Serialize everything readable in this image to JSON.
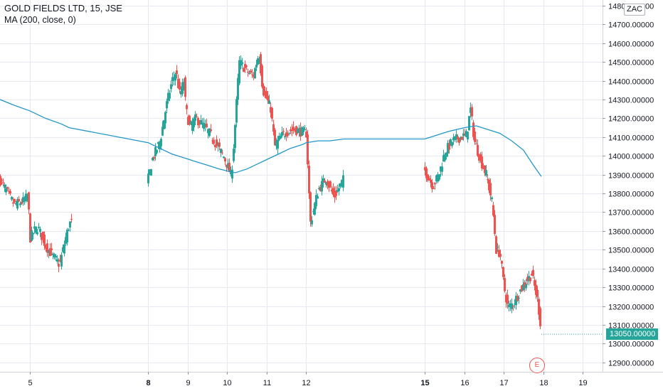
{
  "header": {
    "title": "GOLD FIELDS LTD, 15, JSE",
    "indicator": "MA (200, close, 0)"
  },
  "currency": "ZAC",
  "last_price_label": "13050.00000",
  "event_marker_label": "E",
  "colors": {
    "up": "#26a69a",
    "down": "#ef5350",
    "ma": "#2196c8",
    "grid": "#e6e9ef",
    "price_tag": "#26a69a"
  },
  "chart_data": {
    "type": "candlestick",
    "title": "",
    "xlabel": "",
    "ylabel": "",
    "ylim": [
      12850,
      14830
    ],
    "xlim": [
      4.25,
      19.5
    ],
    "grid": true,
    "y_ticks": [
      12900,
      13000,
      13100,
      13200,
      13300,
      13400,
      13500,
      13600,
      13700,
      13800,
      13900,
      14000,
      14100,
      14200,
      14300,
      14400,
      14500,
      14600,
      14700,
      14800
    ],
    "y_tick_labels": [
      "12900.00000",
      "13000.00000",
      "13100.00000",
      "13200.00000",
      "13300.00000",
      "13400.00000",
      "13500.00000",
      "13600.00000",
      "13700.00000",
      "13800.00000",
      "13900.00000",
      "14000.00000",
      "14100.00000",
      "14200.00000",
      "14300.00000",
      "14400.00000",
      "14500.00000",
      "14600.00000",
      "14700.00000",
      "14800.00000"
    ],
    "x_ticks": [
      {
        "value": 5,
        "label": "5",
        "bold": false
      },
      {
        "value": 8,
        "label": "8",
        "bold": true
      },
      {
        "value": 9,
        "label": "9",
        "bold": false
      },
      {
        "value": 10,
        "label": "10",
        "bold": false
      },
      {
        "value": 11,
        "label": "11",
        "bold": false
      },
      {
        "value": 12,
        "label": "12",
        "bold": false
      },
      {
        "value": 15,
        "label": "15",
        "bold": true
      },
      {
        "value": 16,
        "label": "16",
        "bold": false
      },
      {
        "value": 17,
        "label": "17",
        "bold": false
      },
      {
        "value": 18,
        "label": "18",
        "bold": false
      },
      {
        "value": 19,
        "label": "19",
        "bold": false
      }
    ],
    "last_price": 13050,
    "anchors": {
      "x": [
        4.25,
        4.6,
        4.85,
        4.95,
        5.0,
        5.1,
        5.2,
        5.4,
        5.6,
        5.75,
        5.9,
        6.0,
        8.0,
        8.1,
        8.3,
        8.45,
        8.6,
        8.7,
        8.8,
        8.9,
        8.95,
        9.05,
        9.2,
        9.4,
        9.55,
        9.75,
        9.9,
        10.0,
        10.1,
        10.15,
        10.3,
        10.5,
        10.65,
        10.8,
        10.9,
        11.1,
        11.2,
        11.35,
        11.5,
        11.7,
        11.85,
        12.0,
        12.1,
        12.3,
        12.5,
        12.7,
        12.95,
        15.0,
        15.2,
        15.35,
        15.5,
        15.7,
        15.9,
        16.05,
        16.15,
        16.25,
        16.4,
        16.55,
        16.7,
        16.8,
        16.9,
        17.0,
        17.1,
        17.25,
        17.4,
        17.55,
        17.7,
        17.85,
        17.95
      ],
      "y": [
        13870,
        13740,
        13760,
        13790,
        13560,
        13600,
        13620,
        13520,
        13460,
        13420,
        13560,
        13640,
        13880,
        13980,
        14080,
        14260,
        14400,
        14450,
        14320,
        14400,
        14250,
        14150,
        14200,
        14160,
        14120,
        14050,
        14000,
        13950,
        13890,
        14020,
        14500,
        14450,
        14420,
        14550,
        14350,
        14250,
        14050,
        14100,
        14130,
        14140,
        14130,
        14120,
        13640,
        13820,
        13880,
        13780,
        13880,
        13920,
        13840,
        13900,
        14020,
        14080,
        14100,
        14110,
        14250,
        14080,
        13980,
        13900,
        13750,
        13500,
        13480,
        13300,
        13190,
        13220,
        13280,
        13330,
        13370,
        13230,
        13050
      ]
    },
    "series": [
      {
        "name": "MA (200, close, 0)",
        "x": [
          4.25,
          4.6,
          5.0,
          5.4,
          5.8,
          6.0,
          8.0,
          8.3,
          8.6,
          8.9,
          9.2,
          9.5,
          9.8,
          10.0,
          10.2,
          10.5,
          10.8,
          11.0,
          11.3,
          11.6,
          11.9,
          12.0,
          12.3,
          12.6,
          12.95,
          15.0,
          15.3,
          15.6,
          16.0,
          16.3,
          16.6,
          16.9,
          17.2,
          17.5,
          17.75,
          17.95
        ],
        "y": [
          14300,
          14270,
          14240,
          14200,
          14170,
          14150,
          14070,
          14040,
          14010,
          13990,
          13970,
          13950,
          13930,
          13920,
          13910,
          13930,
          13960,
          13980,
          14010,
          14040,
          14060,
          14070,
          14080,
          14080,
          14090,
          14090,
          14110,
          14130,
          14150,
          14160,
          14140,
          14120,
          14080,
          14030,
          13950,
          13890
        ]
      }
    ]
  }
}
